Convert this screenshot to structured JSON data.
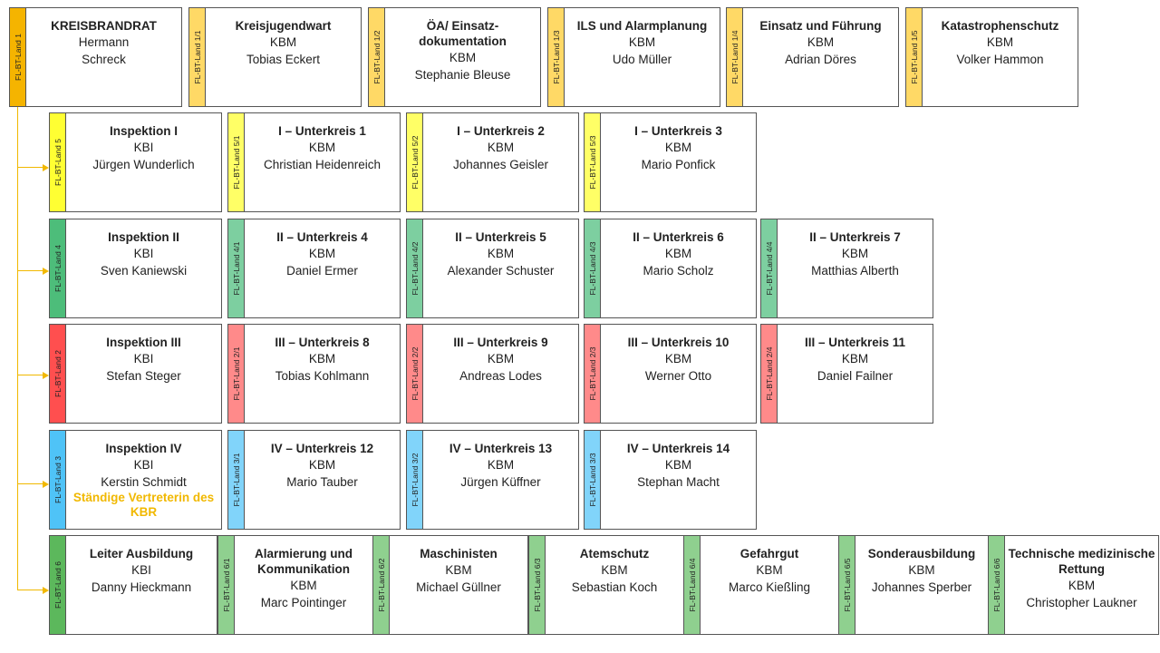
{
  "colors": {
    "connector": "#F1B800",
    "top_lead": "#F5B400",
    "top_sub": "#FFD966",
    "insp1": "#FFFF33",
    "insp1_sub": "#FFFF66",
    "insp2": "#4DBD7A",
    "insp2_sub": "#7DCFA0",
    "insp3": "#FF4F4F",
    "insp3_sub": "#FF8A8A",
    "insp4": "#4FC3F7",
    "insp4_sub": "#81D4FA",
    "ausb": "#5CB85C",
    "ausb_sub": "#8FD08F"
  },
  "nodes": [
    {
      "id": "n-1",
      "tag": "FL-BT-Land 1",
      "title": "KREISBRANDRAT",
      "rank": "Hermann",
      "name": "Schreck",
      "color": "top_lead"
    },
    {
      "id": "n-1-1",
      "tag": "FL-BT-Land 1/1",
      "title": "Kreisjugendwart",
      "rank": "KBM",
      "name": "Tobias Eckert",
      "color": "top_sub"
    },
    {
      "id": "n-1-2",
      "tag": "FL-BT-Land 1/2",
      "title": "ÖA/ Einsatz-dokumentation",
      "rank": "KBM",
      "name": "Stephanie Bleuse",
      "color": "top_sub"
    },
    {
      "id": "n-1-3",
      "tag": "FL-BT-Land 1/3",
      "title": "ILS und Alarmplanung",
      "rank": "KBM",
      "name": "Udo Müller",
      "color": "top_sub"
    },
    {
      "id": "n-1-4",
      "tag": "FL-BT-Land 1/4",
      "title": "Einsatz und Führung",
      "rank": "KBM",
      "name": "Adrian Döres",
      "color": "top_sub"
    },
    {
      "id": "n-1-5",
      "tag": "FL-BT-Land 1/5",
      "title": "Katastrophenschutz",
      "rank": "KBM",
      "name": "Volker Hammon",
      "color": "top_sub"
    },
    {
      "id": "n-5",
      "tag": "FL-BT-Land 5",
      "title": "Inspektion I",
      "rank": "KBI",
      "name": "Jürgen Wunderlich",
      "color": "insp1"
    },
    {
      "id": "n-5-1",
      "tag": "FL-BT-Land 5/1",
      "title": "I – Unterkreis 1",
      "rank": "KBM",
      "name": "Christian Heidenreich",
      "color": "insp1_sub"
    },
    {
      "id": "n-5-2",
      "tag": "FL-BT-Land 5/2",
      "title": "I – Unterkreis 2",
      "rank": "KBM",
      "name": "Johannes Geisler",
      "color": "insp1_sub"
    },
    {
      "id": "n-5-3",
      "tag": "FL-BT-Land 5/3",
      "title": "I – Unterkreis 3",
      "rank": "KBM",
      "name": "Mario Ponfick",
      "color": "insp1_sub"
    },
    {
      "id": "n-4",
      "tag": "FL-BT-Land 4",
      "title": "Inspektion II",
      "rank": "KBI",
      "name": "Sven Kaniewski",
      "color": "insp2"
    },
    {
      "id": "n-4-1",
      "tag": "FL-BT-Land 4/1",
      "title": "II – Unterkreis 4",
      "rank": "KBM",
      "name": "Daniel Ermer",
      "color": "insp2_sub"
    },
    {
      "id": "n-4-2",
      "tag": "FL-BT-Land 4/2",
      "title": "II – Unterkreis 5",
      "rank": "KBM",
      "name": "Alexander Schuster",
      "color": "insp2_sub"
    },
    {
      "id": "n-4-3",
      "tag": "FL-BT-Land 4/3",
      "title": "II – Unterkreis 6",
      "rank": "KBM",
      "name": "Mario Scholz",
      "color": "insp2_sub"
    },
    {
      "id": "n-4-4",
      "tag": "FL-BT-Land 4/4",
      "title": "II – Unterkreis 7",
      "rank": "KBM",
      "name": "Matthias Alberth",
      "color": "insp2_sub"
    },
    {
      "id": "n-2",
      "tag": "FL-BT-Land 2",
      "title": "Inspektion III",
      "rank": "KBI",
      "name": "Stefan Steger",
      "color": "insp3"
    },
    {
      "id": "n-2-1",
      "tag": "FL-BT-Land 2/1",
      "title": "III – Unterkreis 8",
      "rank": "KBM",
      "name": "Tobias Kohlmann",
      "color": "insp3_sub"
    },
    {
      "id": "n-2-2",
      "tag": "FL-BT-Land 2/2",
      "title": "III – Unterkreis 9",
      "rank": "KBM",
      "name": "Andreas Lodes",
      "color": "insp3_sub"
    },
    {
      "id": "n-2-3",
      "tag": "FL-BT-Land 2/3",
      "title": "III – Unterkreis 10",
      "rank": "KBM",
      "name": "Werner Otto",
      "color": "insp3_sub"
    },
    {
      "id": "n-2-4",
      "tag": "FL-BT-Land 2/4",
      "title": "III – Unterkreis 11",
      "rank": "KBM",
      "name": "Daniel Failner",
      "color": "insp3_sub"
    },
    {
      "id": "n-3",
      "tag": "FL-BT-Land 3",
      "title": "Inspektion IV",
      "rank": "KBI",
      "name": "Kerstin Schmidt",
      "note": "Ständige Vertreterin des KBR",
      "color": "insp4"
    },
    {
      "id": "n-3-1",
      "tag": "FL-BT-Land 3/1",
      "title": "IV – Unterkreis 12",
      "rank": "KBM",
      "name": "Mario Tauber",
      "color": "insp4_sub"
    },
    {
      "id": "n-3-2",
      "tag": "FL-BT-Land 3/2",
      "title": "IV – Unterkreis 13",
      "rank": "KBM",
      "name": "Jürgen Küffner",
      "color": "insp4_sub"
    },
    {
      "id": "n-3-3",
      "tag": "FL-BT-Land 3/3",
      "title": "IV – Unterkreis 14",
      "rank": "KBM",
      "name": "Stephan Macht",
      "color": "insp4_sub"
    },
    {
      "id": "n-6",
      "tag": "FL-BT-Land 6",
      "title": "Leiter Ausbildung",
      "rank": "KBI",
      "name": "Danny Hieckmann",
      "color": "ausb"
    },
    {
      "id": "n-6-1",
      "tag": "FL-BT-Land 6/1",
      "title": "Alarmierung und Kommunikation",
      "rank": "KBM",
      "name": "Marc Pointinger",
      "color": "ausb_sub"
    },
    {
      "id": "n-6-2",
      "tag": "FL-BT-Land 6/2",
      "title": "Maschinisten",
      "rank": "KBM",
      "name": "Michael Güllner",
      "color": "ausb_sub"
    },
    {
      "id": "n-6-3",
      "tag": "FL-BT-Land 6/3",
      "title": "Atemschutz",
      "rank": "KBM",
      "name": "Sebastian Koch",
      "color": "ausb_sub"
    },
    {
      "id": "n-6-4",
      "tag": "FL-BT-Land 6/4",
      "title": "Gefahrgut",
      "rank": "KBM",
      "name": "Marco Kießling",
      "color": "ausb_sub"
    },
    {
      "id": "n-6-5",
      "tag": "FL-BT-Land 6/5",
      "title": "Sonderausbildung",
      "rank": "KBM",
      "name": "Johannes Sperber",
      "color": "ausb_sub"
    },
    {
      "id": "n-6-6",
      "tag": "FL-BT-Land 6/6",
      "title": "Technische medizinische Rettung",
      "rank": "KBM",
      "name": "Christopher Laukner",
      "color": "ausb_sub"
    }
  ]
}
